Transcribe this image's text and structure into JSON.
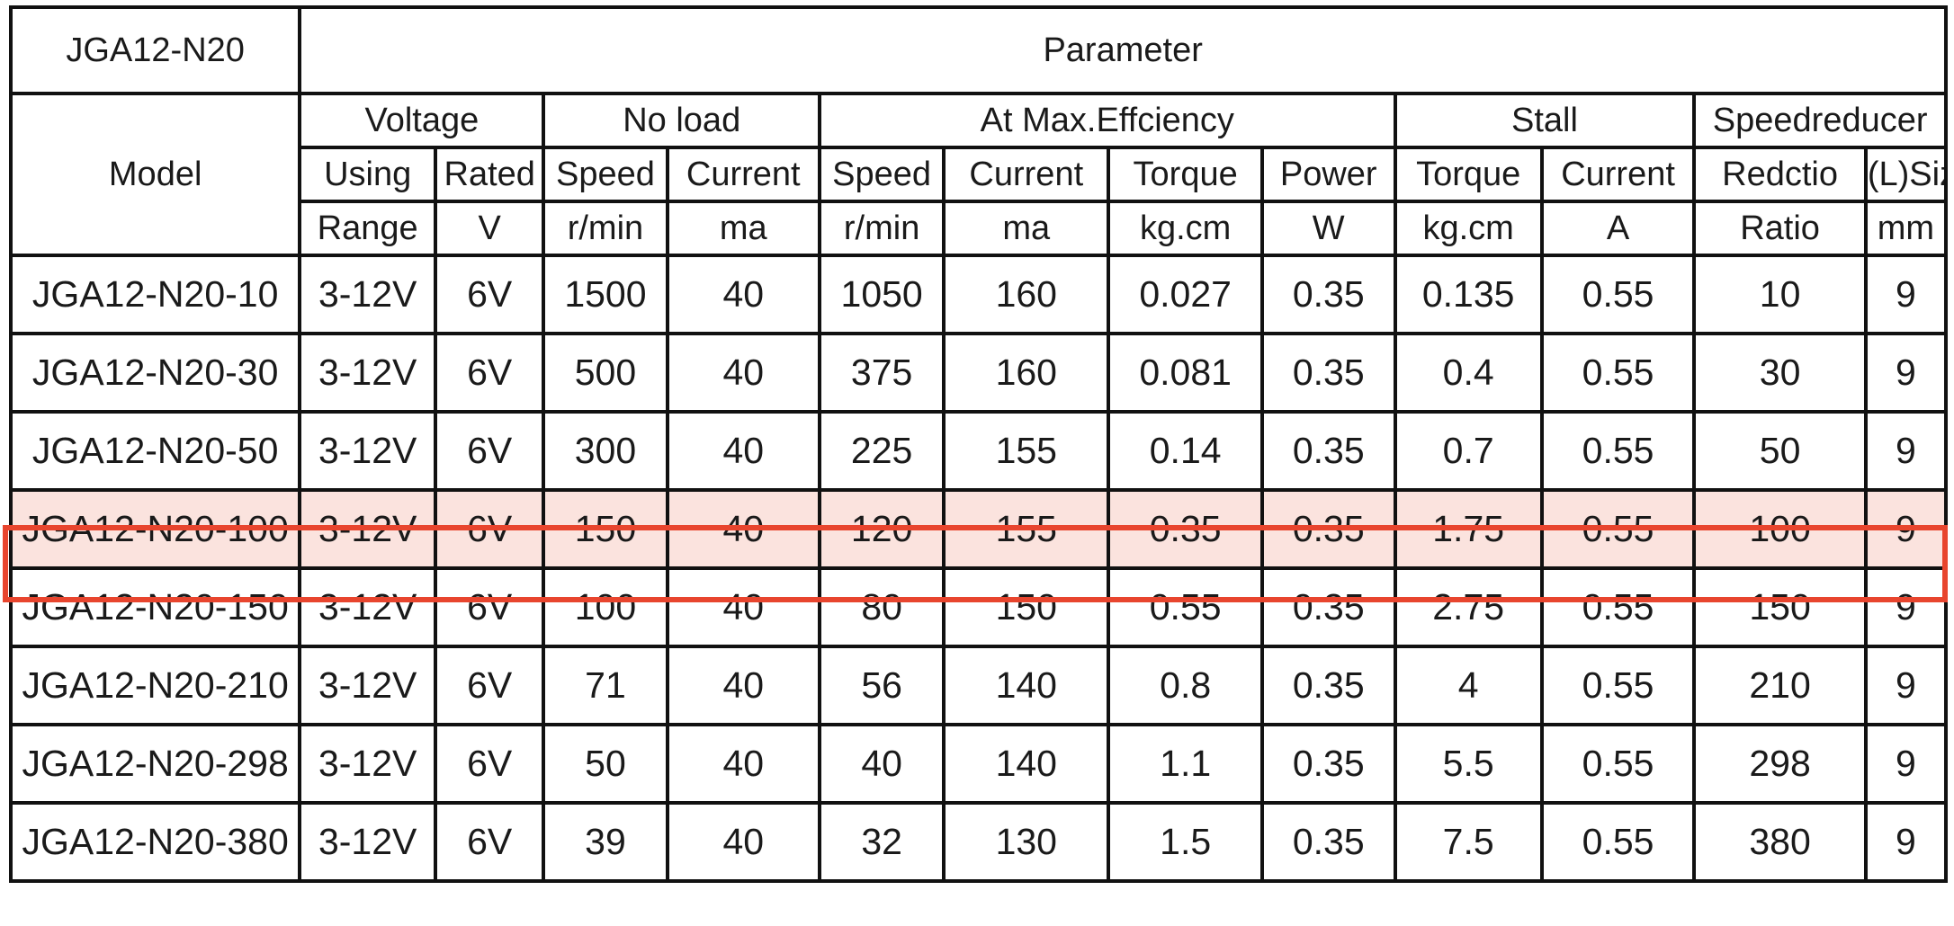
{
  "table": {
    "title": "JGA12-N20",
    "parameter": "Parameter",
    "model_header": "Model",
    "groups": {
      "voltage": "Voltage",
      "no_load": "No load",
      "max_eff": "At Max.Effciency",
      "stall": "Stall",
      "reducer": "Speedreducer"
    },
    "subheads": [
      "Using",
      "Rated",
      "Speed",
      "Current",
      "Speed",
      "Current",
      "Torque",
      "Power",
      "Torque",
      "Current",
      "Redctio",
      "(L)Size"
    ],
    "units": [
      "Range",
      "V",
      "r/min",
      "ma",
      "r/min",
      "ma",
      "kg.cm",
      "W",
      "kg.cm",
      "A",
      "Ratio",
      "mm"
    ],
    "rows": [
      [
        "JGA12-N20-10",
        "3-12V",
        "6V",
        "1500",
        "40",
        "1050",
        "160",
        "0.027",
        "0.35",
        "0.135",
        "0.55",
        "10",
        "9"
      ],
      [
        "JGA12-N20-30",
        "3-12V",
        "6V",
        "500",
        "40",
        "375",
        "160",
        "0.081",
        "0.35",
        "0.4",
        "0.55",
        "30",
        "9"
      ],
      [
        "JGA12-N20-50",
        "3-12V",
        "6V",
        "300",
        "40",
        "225",
        "155",
        "0.14",
        "0.35",
        "0.7",
        "0.55",
        "50",
        "9"
      ],
      [
        "JGA12-N20-100",
        "3-12V",
        "6V",
        "150",
        "40",
        "120",
        "155",
        "0.35",
        "0.35",
        "1.75",
        "0.55",
        "100",
        "9"
      ],
      [
        "JGA12-N20-150",
        "3-12V",
        "6V",
        "100",
        "40",
        "80",
        "150",
        "0.55",
        "0.35",
        "2.75",
        "0.55",
        "150",
        "9"
      ],
      [
        "JGA12-N20-210",
        "3-12V",
        "6V",
        "71",
        "40",
        "56",
        "140",
        "0.8",
        "0.35",
        "4",
        "0.55",
        "210",
        "9"
      ],
      [
        "JGA12-N20-298",
        "3-12V",
        "6V",
        "50",
        "40",
        "40",
        "140",
        "1.1",
        "0.35",
        "5.5",
        "0.55",
        "298",
        "9"
      ],
      [
        "JGA12-N20-380",
        "3-12V",
        "6V",
        "39",
        "40",
        "32",
        "130",
        "1.5",
        "0.35",
        "7.5",
        "0.55",
        "380",
        "9"
      ]
    ],
    "highlight_row": 3,
    "colors": {
      "highlight_border": "#e8452e",
      "highlight_fill": "#fbe3de",
      "grid": "#111111"
    }
  }
}
